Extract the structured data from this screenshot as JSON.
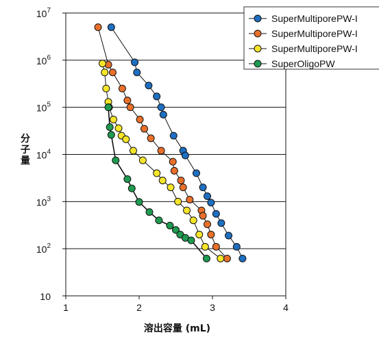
{
  "chart_data": {
    "type": "scatter",
    "title": "",
    "xlabel": "溶出容量 (mL)",
    "ylabel": "分子量",
    "xlim": [
      1,
      4
    ],
    "ylim_log10": [
      1,
      7
    ],
    "y_scale": "log",
    "x_ticks": [
      1,
      2,
      3,
      4
    ],
    "y_ticks": [
      {
        "exp": 1,
        "base": "10",
        "sup": ""
      },
      {
        "exp": 2,
        "base": "10",
        "sup": "2"
      },
      {
        "exp": 3,
        "base": "10",
        "sup": "3"
      },
      {
        "exp": 4,
        "base": "10",
        "sup": "4"
      },
      {
        "exp": 5,
        "base": "10",
        "sup": "5"
      },
      {
        "exp": 6,
        "base": "10",
        "sup": "6"
      },
      {
        "exp": 7,
        "base": "10",
        "sup": "7"
      }
    ],
    "horizontal_gridlines": true,
    "legend_position": "top-right",
    "series": [
      {
        "name": "SuperMultiporePW-I",
        "color": "#1f6fc0",
        "points": [
          [
            1.62,
            5000000
          ],
          [
            1.94,
            900000
          ],
          [
            1.97,
            550000
          ],
          [
            2.13,
            290000
          ],
          [
            2.24,
            170000
          ],
          [
            2.3,
            100000
          ],
          [
            2.33,
            70000
          ],
          [
            2.47,
            25000
          ],
          [
            2.6,
            12000
          ],
          [
            2.63,
            9500
          ],
          [
            2.78,
            4000
          ],
          [
            2.87,
            2000
          ],
          [
            2.93,
            1300
          ],
          [
            2.98,
            950
          ],
          [
            3.05,
            550
          ],
          [
            3.12,
            350
          ],
          [
            3.22,
            190
          ],
          [
            3.33,
            110
          ],
          [
            3.41,
            62
          ]
        ]
      },
      {
        "name": "SuperMultiporePW-I",
        "color": "#e8702a",
        "points": [
          [
            1.44,
            5000000
          ],
          [
            1.58,
            800000
          ],
          [
            1.64,
            550000
          ],
          [
            1.77,
            250000
          ],
          [
            1.84,
            140000
          ],
          [
            1.88,
            100000
          ],
          [
            2.01,
            55000
          ],
          [
            2.07,
            35000
          ],
          [
            2.16,
            22000
          ],
          [
            2.3,
            12000
          ],
          [
            2.46,
            7000
          ],
          [
            2.48,
            4500
          ],
          [
            2.57,
            2800
          ],
          [
            2.6,
            2000
          ],
          [
            2.69,
            1100
          ],
          [
            2.85,
            650
          ],
          [
            2.87,
            500
          ],
          [
            2.93,
            330
          ],
          [
            2.98,
            200
          ],
          [
            3.05,
            110
          ],
          [
            3.2,
            62
          ]
        ]
      },
      {
        "name": "SuperMultiporePW-I",
        "color": "#f5e52a",
        "points": [
          [
            1.5,
            850000
          ],
          [
            1.53,
            550000
          ],
          [
            1.55,
            250000
          ],
          [
            1.58,
            130000
          ],
          [
            1.59,
            100000
          ],
          [
            1.65,
            55000
          ],
          [
            1.72,
            36000
          ],
          [
            1.76,
            25000
          ],
          [
            1.82,
            21000
          ],
          [
            1.92,
            12000
          ],
          [
            2.05,
            7500
          ],
          [
            2.24,
            4000
          ],
          [
            2.32,
            2800
          ],
          [
            2.43,
            2000
          ],
          [
            2.53,
            1000
          ],
          [
            2.65,
            650
          ],
          [
            2.74,
            400
          ],
          [
            2.82,
            200
          ],
          [
            2.9,
            110
          ],
          [
            3.11,
            62
          ]
        ]
      },
      {
        "name": "SuperOligoPW",
        "color": "#1f9a50",
        "points": [
          [
            1.58,
            100000
          ],
          [
            1.6,
            38000
          ],
          [
            1.62,
            26000
          ],
          [
            1.68,
            7500
          ],
          [
            1.84,
            3000
          ],
          [
            1.9,
            1900
          ],
          [
            2.0,
            980
          ],
          [
            2.14,
            600
          ],
          [
            2.27,
            400
          ],
          [
            2.42,
            310
          ],
          [
            2.5,
            250
          ],
          [
            2.56,
            200
          ],
          [
            2.63,
            170
          ],
          [
            2.71,
            150
          ],
          [
            2.92,
            62
          ]
        ]
      }
    ]
  }
}
